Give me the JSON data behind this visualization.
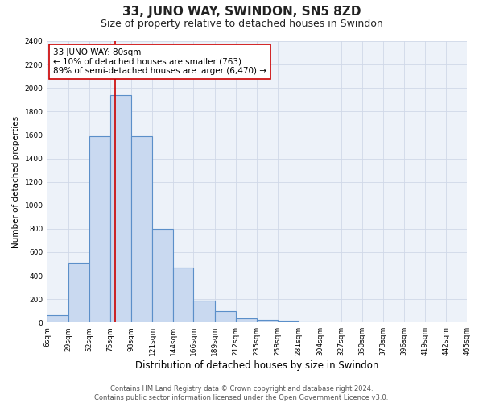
{
  "title": "33, JUNO WAY, SWINDON, SN5 8ZD",
  "subtitle": "Size of property relative to detached houses in Swindon",
  "xlabel": "Distribution of detached houses by size in Swindon",
  "ylabel": "Number of detached properties",
  "bin_edges": [
    6,
    29,
    52,
    75,
    98,
    121,
    144,
    166,
    189,
    212,
    235,
    258,
    281,
    304,
    327,
    350,
    373,
    396,
    419,
    442,
    465
  ],
  "bin_labels": [
    "6sqm",
    "29sqm",
    "52sqm",
    "75sqm",
    "98sqm",
    "121sqm",
    "144sqm",
    "166sqm",
    "189sqm",
    "212sqm",
    "235sqm",
    "258sqm",
    "281sqm",
    "304sqm",
    "327sqm",
    "350sqm",
    "373sqm",
    "396sqm",
    "419sqm",
    "442sqm",
    "465sqm"
  ],
  "bar_values": [
    60,
    510,
    1590,
    1940,
    1590,
    800,
    470,
    190,
    100,
    35,
    25,
    15,
    5,
    0,
    0,
    0,
    0,
    0,
    0,
    0
  ],
  "bar_facecolor": "#c9d9f0",
  "bar_edgecolor": "#5b8fc9",
  "bar_linewidth": 0.8,
  "vline_x": 80,
  "vline_color": "#cc0000",
  "vline_linewidth": 1.2,
  "annotation_line1": "33 JUNO WAY: 80sqm",
  "annotation_line2": "← 10% of detached houses are smaller (763)",
  "annotation_line3": "89% of semi-detached houses are larger (6,470) →",
  "annotation_box_edgecolor": "#cc0000",
  "annotation_box_facecolor": "#ffffff",
  "ylim": [
    0,
    2400
  ],
  "yticks": [
    0,
    200,
    400,
    600,
    800,
    1000,
    1200,
    1400,
    1600,
    1800,
    2000,
    2200,
    2400
  ],
  "grid_color": "#d0d8e8",
  "background_color": "#edf2f9",
  "footer_line1": "Contains HM Land Registry data © Crown copyright and database right 2024.",
  "footer_line2": "Contains public sector information licensed under the Open Government Licence v3.0.",
  "title_fontsize": 11,
  "subtitle_fontsize": 9,
  "xlabel_fontsize": 8.5,
  "ylabel_fontsize": 7.5,
  "tick_fontsize": 6.5,
  "annotation_fontsize": 7.5,
  "footer_fontsize": 6
}
